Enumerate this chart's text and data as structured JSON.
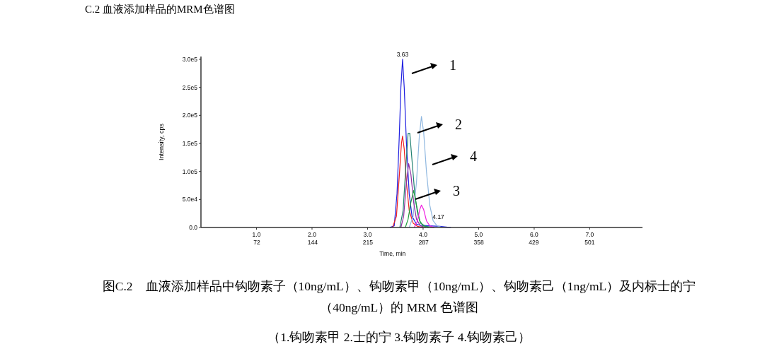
{
  "chart_data": {
    "type": "line",
    "title": "C.2  血液添加样品的MRM色谱图",
    "xlabel": "Time, min",
    "ylabel": "Intensity, cps",
    "xlim": [
      0,
      7.95
    ],
    "ylim": [
      0,
      305000
    ],
    "xticks": [
      {
        "value": 1,
        "label": "1.0"
      },
      {
        "value": 2,
        "label": "2.0"
      },
      {
        "value": 3,
        "label": "3.0"
      },
      {
        "value": 4,
        "label": "4.0"
      },
      {
        "value": 5,
        "label": "5.0"
      },
      {
        "value": 6,
        "label": "6.0"
      },
      {
        "value": 7,
        "label": "7.0"
      }
    ],
    "x2lim": [
      0,
      569
    ],
    "x2ticks": [
      72,
      144,
      215,
      287,
      358,
      429,
      501
    ],
    "yticks": [
      {
        "value": 0,
        "label": "0.0"
      },
      {
        "value": 50000,
        "label": "5.0e4"
      },
      {
        "value": 100000,
        "label": "1.0e5"
      },
      {
        "value": 150000,
        "label": "1.5e5"
      },
      {
        "value": 200000,
        "label": "2.0e5"
      },
      {
        "value": 250000,
        "label": "2.5e5"
      },
      {
        "value": 300000,
        "label": "3.0e5"
      }
    ],
    "marker": "none",
    "line_style": "solid",
    "grid": false,
    "series": [
      {
        "color": "#2020e0",
        "x": [
          3.4,
          3.48,
          3.53,
          3.57,
          3.6,
          3.63,
          3.66,
          3.7,
          3.75,
          3.8,
          3.88,
          3.95,
          4.1,
          4.3,
          4.5
        ],
        "values": [
          0,
          3000,
          60000,
          160000,
          250000,
          300000,
          250000,
          150000,
          60000,
          20000,
          6000,
          4000,
          3000,
          2000,
          0
        ]
      },
      {
        "color": "#f02020",
        "x": [
          3.45,
          3.52,
          3.57,
          3.61,
          3.63,
          3.66,
          3.7,
          3.75,
          3.82,
          3.9,
          4.0
        ],
        "values": [
          0,
          20000,
          90000,
          150000,
          163000,
          140000,
          80000,
          30000,
          8000,
          2000,
          0
        ]
      },
      {
        "color": "#208070",
        "x": [
          3.58,
          3.64,
          3.69,
          3.73,
          3.76,
          3.8,
          3.85,
          3.9,
          3.95,
          4.05,
          4.2
        ],
        "values": [
          0,
          30000,
          110000,
          168000,
          168000,
          120000,
          60000,
          25000,
          8000,
          2000,
          0
        ]
      },
      {
        "color": "#90b8e0",
        "x": [
          3.75,
          3.82,
          3.88,
          3.93,
          3.97,
          4.01,
          4.06,
          4.12,
          4.18,
          4.25,
          4.35
        ],
        "values": [
          0,
          20000,
          80000,
          160000,
          198000,
          170000,
          100000,
          40000,
          12000,
          3000,
          0
        ]
      },
      {
        "color": "#9030a0",
        "x": [
          3.6,
          3.65,
          3.7,
          3.74,
          3.78,
          3.83,
          3.88,
          3.95,
          4.05
        ],
        "values": [
          0,
          20000,
          80000,
          114000,
          95000,
          45000,
          15000,
          3000,
          0
        ]
      },
      {
        "color": "#20a040",
        "x": [
          3.68,
          3.73,
          3.78,
          3.83,
          3.88,
          3.94,
          4.0,
          4.1
        ],
        "values": [
          0,
          15000,
          45000,
          66000,
          40000,
          12000,
          3000,
          0
        ]
      },
      {
        "color": "#f020e0",
        "x": [
          3.84,
          3.9,
          3.94,
          3.97,
          4.01,
          4.06,
          4.12,
          4.2
        ],
        "values": [
          0,
          12000,
          32000,
          40000,
          32000,
          12000,
          3000,
          0
        ]
      }
    ],
    "annotations": [
      {
        "text": "3.63",
        "x": 3.63,
        "y": 300000
      },
      {
        "text": "4.17",
        "x": 4.17,
        "y": 10000
      },
      "1",
      "2",
      "4",
      "3",
      "图C.2　血液添加样品中钩吻素子（10ng/mL）、钩吻素甲（10ng/mL）、钩吻素己（1ng/mL）及内标士的宁（40ng/mL）的 MRM 色谱图",
      "（1.钩吻素甲  2.士的宁  3.钩吻素子  4.钩吻素己）"
    ]
  }
}
